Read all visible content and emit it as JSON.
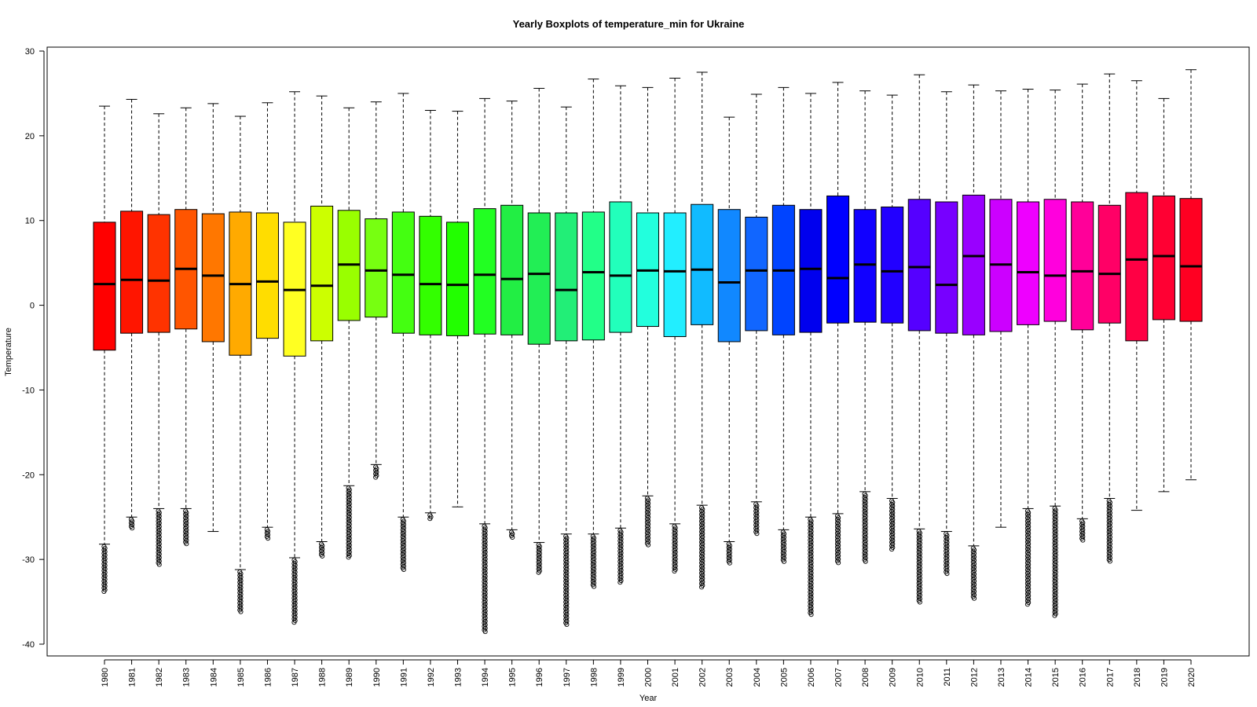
{
  "chart_data": {
    "type": "box",
    "title": "Yearly Boxplots of temperature_min for Ukraine",
    "xlabel": "Year",
    "ylabel": "Temperature",
    "ylim": [
      -41,
      30.5
    ],
    "yticks": [
      30,
      20,
      10,
      0,
      -10,
      -20,
      -30,
      -40
    ],
    "grid": false,
    "legend": "none",
    "median_color": "#000000",
    "whisker_style": "dashed",
    "categories": [
      "1980",
      "1981",
      "1982",
      "1983",
      "1984",
      "1985",
      "1986",
      "1987",
      "1988",
      "1989",
      "1990",
      "1991",
      "1992",
      "1993",
      "1994",
      "1995",
      "1996",
      "1997",
      "1998",
      "1999",
      "2000",
      "2001",
      "2002",
      "2003",
      "2004",
      "2005",
      "2006",
      "2007",
      "2008",
      "2009",
      "2010",
      "2011",
      "2012",
      "2013",
      "2014",
      "2015",
      "2016",
      "2017",
      "2018",
      "2019",
      "2020"
    ],
    "colors": [
      "#FF0000",
      "#FF1500",
      "#FF3300",
      "#FF5500",
      "#FF7700",
      "#FFAA00",
      "#FFDD00",
      "#FFFF22",
      "#CCFF00",
      "#99FF00",
      "#77FF11",
      "#44FF11",
      "#33FF00",
      "#22FF00",
      "#22FF22",
      "#22EE44",
      "#22EE55",
      "#22EE77",
      "#22FF88",
      "#22FFBB",
      "#22FFDD",
      "#22EEFF",
      "#11BBFF",
      "#1188FF",
      "#1166FF",
      "#0044FF",
      "#0000EE",
      "#0000FF",
      "#1100FF",
      "#2200FF",
      "#5500FF",
      "#7700FF",
      "#9900FF",
      "#CC00FF",
      "#EE00FF",
      "#FF00DD",
      "#FF0099",
      "#FF0066",
      "#FF0044",
      "#FF0033",
      "#FF0022"
    ],
    "boxes": [
      {
        "year": "1980",
        "whisker_low": -28.2,
        "q1": -5.3,
        "median": 2.5,
        "q3": 9.8,
        "whisker_high": 23.5,
        "outlier_min": -33.8
      },
      {
        "year": "1981",
        "whisker_low": -25.0,
        "q1": -3.3,
        "median": 3.0,
        "q3": 11.1,
        "whisker_high": 24.3,
        "outlier_min": -26.5
      },
      {
        "year": "1982",
        "whisker_low": -24.0,
        "q1": -3.2,
        "median": 2.9,
        "q3": 10.7,
        "whisker_high": 22.6,
        "outlier_min": -30.8
      },
      {
        "year": "1983",
        "whisker_low": -24.0,
        "q1": -2.8,
        "median": 4.3,
        "q3": 11.3,
        "whisker_high": 23.3,
        "outlier_min": -28.3
      },
      {
        "year": "1984",
        "whisker_low": -26.7,
        "q1": -4.3,
        "median": 3.5,
        "q3": 10.8,
        "whisker_high": 23.8,
        "outlier_min": null
      },
      {
        "year": "1985",
        "whisker_low": -31.2,
        "q1": -5.9,
        "median": 2.5,
        "q3": 11.0,
        "whisker_high": 22.3,
        "outlier_min": -36.2
      },
      {
        "year": "1986",
        "whisker_low": -26.2,
        "q1": -3.9,
        "median": 2.8,
        "q3": 10.9,
        "whisker_high": 23.9,
        "outlier_min": -27.6
      },
      {
        "year": "1987",
        "whisker_low": -29.8,
        "q1": -6.0,
        "median": 1.8,
        "q3": 9.8,
        "whisker_high": 25.2,
        "outlier_min": -37.5
      },
      {
        "year": "1988",
        "whisker_low": -27.9,
        "q1": -4.2,
        "median": 2.3,
        "q3": 11.7,
        "whisker_high": 24.7,
        "outlier_min": -29.7
      },
      {
        "year": "1989",
        "whisker_low": -21.3,
        "q1": -1.8,
        "median": 4.8,
        "q3": 11.2,
        "whisker_high": 23.3,
        "outlier_min": -29.9
      },
      {
        "year": "1990",
        "whisker_low": -18.8,
        "q1": -1.4,
        "median": 4.1,
        "q3": 10.2,
        "whisker_high": 24.0,
        "outlier_min": -20.5
      },
      {
        "year": "1991",
        "whisker_low": -25.0,
        "q1": -3.3,
        "median": 3.6,
        "q3": 11.0,
        "whisker_high": 25.0,
        "outlier_min": -31.2
      },
      {
        "year": "1992",
        "whisker_low": -24.5,
        "q1": -3.5,
        "median": 2.5,
        "q3": 10.5,
        "whisker_high": 23.0,
        "outlier_min": -25.3
      },
      {
        "year": "1993",
        "whisker_low": -23.8,
        "q1": -3.6,
        "median": 2.4,
        "q3": 9.8,
        "whisker_high": 22.9,
        "outlier_min": null
      },
      {
        "year": "1994",
        "whisker_low": -25.8,
        "q1": -3.4,
        "median": 3.6,
        "q3": 11.4,
        "whisker_high": 24.4,
        "outlier_min": -38.6
      },
      {
        "year": "1995",
        "whisker_low": -26.5,
        "q1": -3.5,
        "median": 3.1,
        "q3": 11.8,
        "whisker_high": 24.1,
        "outlier_min": -27.4
      },
      {
        "year": "1996",
        "whisker_low": -28.0,
        "q1": -4.6,
        "median": 3.7,
        "q3": 10.9,
        "whisker_high": 25.6,
        "outlier_min": -31.7
      },
      {
        "year": "1997",
        "whisker_low": -27.0,
        "q1": -4.2,
        "median": 1.8,
        "q3": 10.9,
        "whisker_high": 23.4,
        "outlier_min": -37.7
      },
      {
        "year": "1998",
        "whisker_low": -27.0,
        "q1": -4.1,
        "median": 3.9,
        "q3": 11.0,
        "whisker_high": 26.7,
        "outlier_min": -33.3
      },
      {
        "year": "1999",
        "whisker_low": -26.3,
        "q1": -3.2,
        "median": 3.5,
        "q3": 12.2,
        "whisker_high": 25.9,
        "outlier_min": -32.8
      },
      {
        "year": "2000",
        "whisker_low": -22.5,
        "q1": -2.5,
        "median": 4.1,
        "q3": 10.9,
        "whisker_high": 25.7,
        "outlier_min": -28.4
      },
      {
        "year": "2001",
        "whisker_low": -25.8,
        "q1": -3.7,
        "median": 4.0,
        "q3": 10.9,
        "whisker_high": 26.8,
        "outlier_min": -31.5
      },
      {
        "year": "2002",
        "whisker_low": -23.6,
        "q1": -2.3,
        "median": 4.2,
        "q3": 11.9,
        "whisker_high": 27.5,
        "outlier_min": -33.3
      },
      {
        "year": "2003",
        "whisker_low": -27.9,
        "q1": -4.3,
        "median": 2.7,
        "q3": 11.3,
        "whisker_high": 22.2,
        "outlier_min": -30.6
      },
      {
        "year": "2004",
        "whisker_low": -23.2,
        "q1": -3.0,
        "median": 4.1,
        "q3": 10.4,
        "whisker_high": 24.9,
        "outlier_min": -27.0
      },
      {
        "year": "2005",
        "whisker_low": -26.5,
        "q1": -3.5,
        "median": 4.1,
        "q3": 11.8,
        "whisker_high": 25.7,
        "outlier_min": -30.3
      },
      {
        "year": "2006",
        "whisker_low": -25.0,
        "q1": -3.2,
        "median": 4.3,
        "q3": 11.3,
        "whisker_high": 25.0,
        "outlier_min": -36.6
      },
      {
        "year": "2007",
        "whisker_low": -24.6,
        "q1": -2.1,
        "median": 3.2,
        "q3": 12.9,
        "whisker_high": 26.3,
        "outlier_min": -30.4
      },
      {
        "year": "2008",
        "whisker_low": -22.0,
        "q1": -2.0,
        "median": 4.8,
        "q3": 11.3,
        "whisker_high": 25.3,
        "outlier_min": -30.3
      },
      {
        "year": "2009",
        "whisker_low": -22.8,
        "q1": -2.1,
        "median": 4.0,
        "q3": 11.6,
        "whisker_high": 24.8,
        "outlier_min": -28.9
      },
      {
        "year": "2010",
        "whisker_low": -26.4,
        "q1": -3.0,
        "median": 4.5,
        "q3": 12.5,
        "whisker_high": 27.2,
        "outlier_min": -35.2
      },
      {
        "year": "2011",
        "whisker_low": -26.7,
        "q1": -3.3,
        "median": 2.4,
        "q3": 12.2,
        "whisker_high": 25.2,
        "outlier_min": -31.8
      },
      {
        "year": "2012",
        "whisker_low": -28.4,
        "q1": -3.5,
        "median": 5.8,
        "q3": 13.0,
        "whisker_high": 26.0,
        "outlier_min": -34.6
      },
      {
        "year": "2013",
        "whisker_low": -26.2,
        "q1": -3.1,
        "median": 4.8,
        "q3": 12.5,
        "whisker_high": 25.3,
        "outlier_min": null
      },
      {
        "year": "2014",
        "whisker_low": -24.0,
        "q1": -2.3,
        "median": 3.9,
        "q3": 12.2,
        "whisker_high": 25.5,
        "outlier_min": -35.3
      },
      {
        "year": "2015",
        "whisker_low": -23.7,
        "q1": -1.9,
        "median": 3.5,
        "q3": 12.5,
        "whisker_high": 25.4,
        "outlier_min": -36.7
      },
      {
        "year": "2016",
        "whisker_low": -25.2,
        "q1": -2.9,
        "median": 4.0,
        "q3": 12.2,
        "whisker_high": 26.1,
        "outlier_min": -27.8
      },
      {
        "year": "2017",
        "whisker_low": -22.8,
        "q1": -2.1,
        "median": 3.7,
        "q3": 11.8,
        "whisker_high": 27.3,
        "outlier_min": -30.4
      },
      {
        "year": "2018",
        "whisker_low": -24.2,
        "q1": -4.2,
        "median": 5.4,
        "q3": 13.3,
        "whisker_high": 26.5,
        "outlier_min": null
      },
      {
        "year": "2019",
        "whisker_low": -22.0,
        "q1": -1.7,
        "median": 5.8,
        "q3": 12.9,
        "whisker_high": 24.4,
        "outlier_min": null
      },
      {
        "year": "2020",
        "whisker_low": -20.6,
        "q1": -1.9,
        "median": 4.6,
        "q3": 12.6,
        "whisker_high": 27.8,
        "outlier_min": null
      }
    ]
  }
}
